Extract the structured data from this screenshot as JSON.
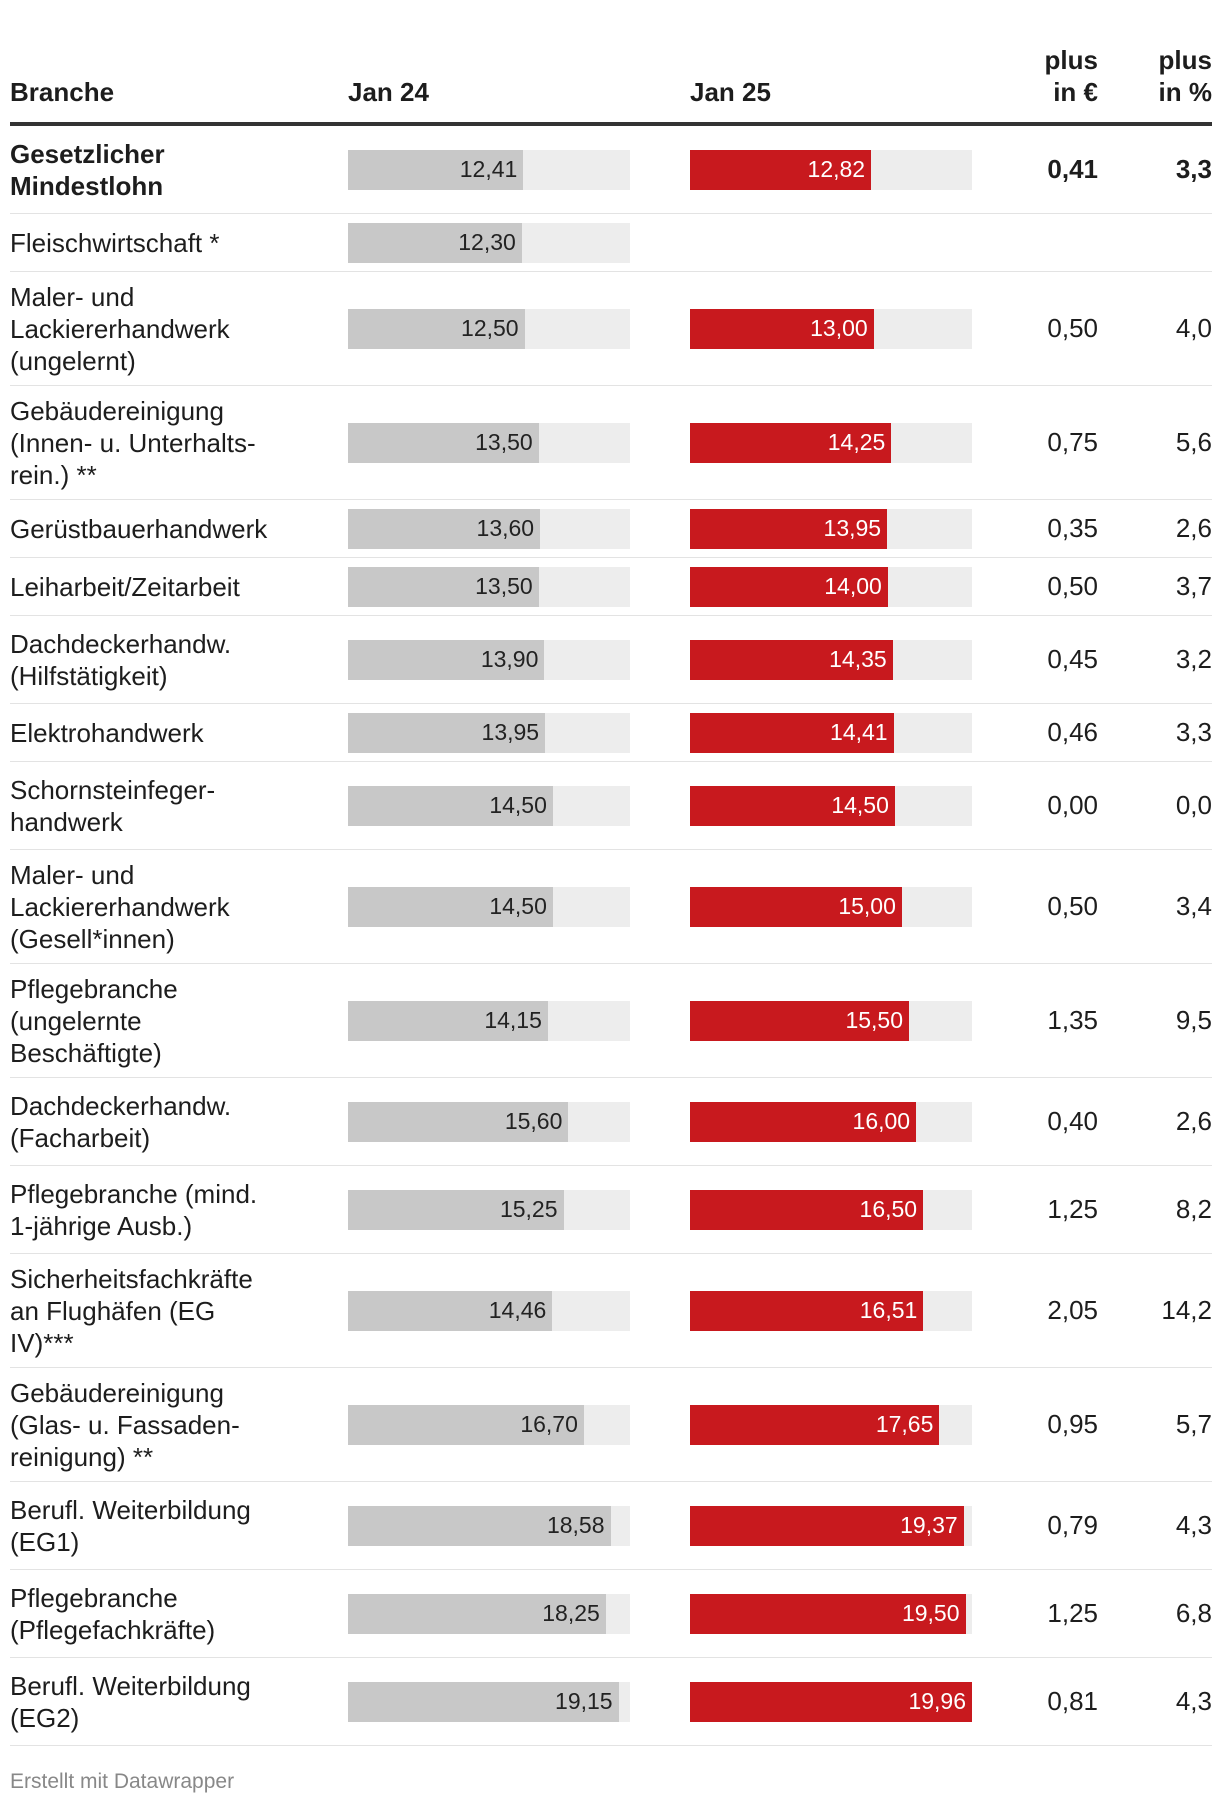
{
  "columns": {
    "branche": "Branche",
    "jan24": "Jan 24",
    "jan25": "Jan 25",
    "plus_eur": "plus\nin €",
    "plus_pct": "plus\nin %"
  },
  "chart_data": {
    "type": "table",
    "bar_max": 19.96,
    "rows": [
      {
        "name": "Gesetzlicher\nMindestlohn",
        "jan24": 12.41,
        "jan24_label": "12,41",
        "jan25": 12.82,
        "jan25_label": "12,82",
        "plus_eur": "0,41",
        "plus_pct": "3,3",
        "bold": true
      },
      {
        "name": "Fleischwirtschaft *",
        "jan24": 12.3,
        "jan24_label": "12,30",
        "jan25": null,
        "jan25_label": "",
        "plus_eur": "",
        "plus_pct": ""
      },
      {
        "name": "Maler- und\nLackiererhandwerk\n(ungelernt)",
        "jan24": 12.5,
        "jan24_label": "12,50",
        "jan25": 13.0,
        "jan25_label": "13,00",
        "plus_eur": "0,50",
        "plus_pct": "4,0"
      },
      {
        "name": "Gebäudereinigung\n(Innen- u. Unterhalts-\nrein.) **",
        "jan24": 13.5,
        "jan24_label": "13,50",
        "jan25": 14.25,
        "jan25_label": "14,25",
        "plus_eur": "0,75",
        "plus_pct": "5,6"
      },
      {
        "name": "Gerüstbauerhandwerk",
        "jan24": 13.6,
        "jan24_label": "13,60",
        "jan25": 13.95,
        "jan25_label": "13,95",
        "plus_eur": "0,35",
        "plus_pct": "2,6"
      },
      {
        "name": "Leiharbeit/Zeitarbeit",
        "jan24": 13.5,
        "jan24_label": "13,50",
        "jan25": 14.0,
        "jan25_label": "14,00",
        "plus_eur": "0,50",
        "plus_pct": "3,7"
      },
      {
        "name": "Dachdeckerhandw.\n(Hilfstätigkeit)",
        "jan24": 13.9,
        "jan24_label": "13,90",
        "jan25": 14.35,
        "jan25_label": "14,35",
        "plus_eur": "0,45",
        "plus_pct": "3,2"
      },
      {
        "name": "Elektrohandwerk",
        "jan24": 13.95,
        "jan24_label": "13,95",
        "jan25": 14.41,
        "jan25_label": "14,41",
        "plus_eur": "0,46",
        "plus_pct": "3,3"
      },
      {
        "name": "Schornsteinfeger-\nhandwerk",
        "jan24": 14.5,
        "jan24_label": "14,50",
        "jan25": 14.5,
        "jan25_label": "14,50",
        "plus_eur": "0,00",
        "plus_pct": "0,0"
      },
      {
        "name": "Maler- und\nLackiererhandwerk\n(Gesell*innen)",
        "jan24": 14.5,
        "jan24_label": "14,50",
        "jan25": 15.0,
        "jan25_label": "15,00",
        "plus_eur": "0,50",
        "plus_pct": "3,4"
      },
      {
        "name": "Pflegebranche\n(ungelernte\nBeschäftigte)",
        "jan24": 14.15,
        "jan24_label": "14,15",
        "jan25": 15.5,
        "jan25_label": "15,50",
        "plus_eur": "1,35",
        "plus_pct": "9,5"
      },
      {
        "name": "Dachdeckerhandw.\n(Facharbeit)",
        "jan24": 15.6,
        "jan24_label": "15,60",
        "jan25": 16.0,
        "jan25_label": "16,00",
        "plus_eur": "0,40",
        "plus_pct": "2,6"
      },
      {
        "name": "Pflegebranche (mind.\n1-jährige Ausb.)",
        "jan24": 15.25,
        "jan24_label": "15,25",
        "jan25": 16.5,
        "jan25_label": "16,50",
        "plus_eur": "1,25",
        "plus_pct": "8,2"
      },
      {
        "name": "Sicherheitsfachkräfte\nan Flughäfen (EG\nIV)***",
        "jan24": 14.46,
        "jan24_label": "14,46",
        "jan25": 16.51,
        "jan25_label": "16,51",
        "plus_eur": "2,05",
        "plus_pct": "14,2"
      },
      {
        "name": "Gebäudereinigung\n(Glas- u. Fassaden-\nreinigung) **",
        "jan24": 16.7,
        "jan24_label": "16,70",
        "jan25": 17.65,
        "jan25_label": "17,65",
        "plus_eur": "0,95",
        "plus_pct": "5,7"
      },
      {
        "name": "Berufl. Weiterbildung\n(EG1)",
        "jan24": 18.58,
        "jan24_label": "18,58",
        "jan25": 19.37,
        "jan25_label": "19,37",
        "plus_eur": "0,79",
        "plus_pct": "4,3"
      },
      {
        "name": "Pflegebranche\n(Pflegefachkräfte)",
        "jan24": 18.25,
        "jan24_label": "18,25",
        "jan25": 19.5,
        "jan25_label": "19,50",
        "plus_eur": "1,25",
        "plus_pct": "6,8"
      },
      {
        "name": "Berufl. Weiterbildung\n(EG2)",
        "jan24": 19.15,
        "jan24_label": "19,15",
        "jan25": 19.96,
        "jan25_label": "19,96",
        "plus_eur": "0,81",
        "plus_pct": "4,3"
      }
    ]
  },
  "colors": {
    "bar_jan24": "#c8c8c8",
    "bar_jan25": "#c8191e",
    "track": "#ededed"
  },
  "footer": "Erstellt mit Datawrapper"
}
